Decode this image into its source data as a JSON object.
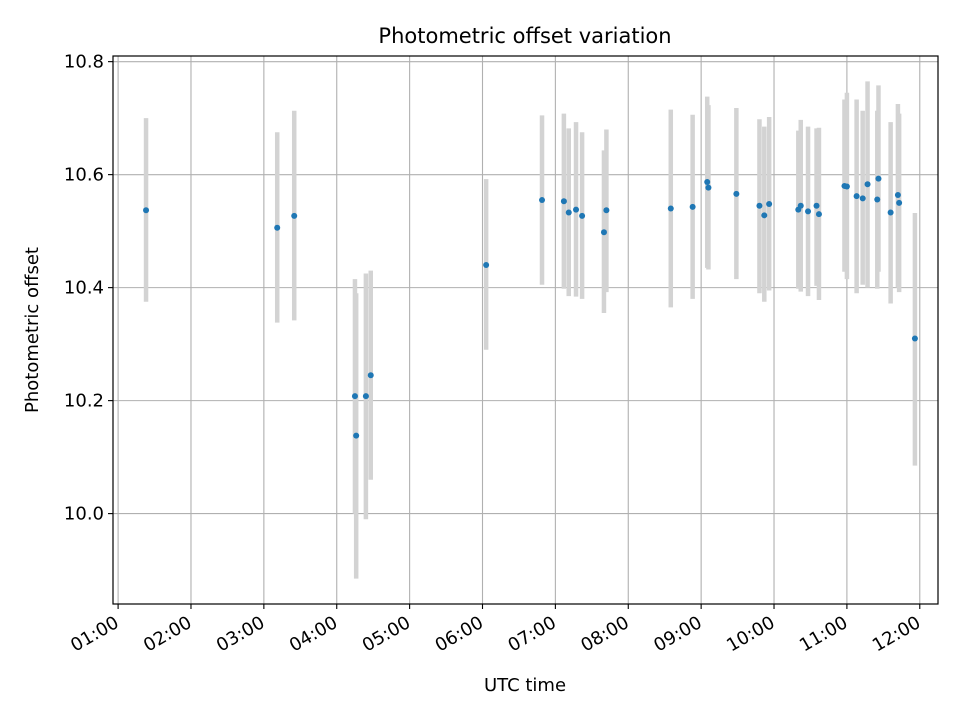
{
  "chart_data": {
    "type": "scatter",
    "title": "Photometric offset variation",
    "xlabel": "UTC time",
    "ylabel": "Photometric offset",
    "grid": true,
    "xlim_hours": [
      0.93,
      12.25
    ],
    "ylim": [
      9.84,
      10.81
    ],
    "x_ticks": [
      "01:00",
      "02:00",
      "03:00",
      "04:00",
      "05:00",
      "06:00",
      "07:00",
      "08:00",
      "09:00",
      "10:00",
      "11:00",
      "12:00"
    ],
    "y_ticks": [
      "10.0",
      "10.2",
      "10.4",
      "10.6",
      "10.8"
    ],
    "colors": {
      "point": "#1f77b4",
      "error_bar": "#d3d3d3",
      "grid": "#b0b0b0"
    },
    "series": [
      {
        "error_bar_color": "#d3d3d3",
        "points": [
          {
            "x": "01:23",
            "y": 10.537,
            "lo": 10.375,
            "hi": 10.7
          },
          {
            "x": "03:11",
            "y": 10.506,
            "lo": 10.338,
            "hi": 10.675
          },
          {
            "x": "03:25",
            "y": 10.527,
            "lo": 10.342,
            "hi": 10.713
          },
          {
            "x": "04:15",
            "y": 10.208,
            "lo": 10.0,
            "hi": 10.415
          },
          {
            "x": "04:16",
            "y": 10.138,
            "lo": 9.885,
            "hi": 10.39
          },
          {
            "x": "04:24",
            "y": 10.208,
            "lo": 9.99,
            "hi": 10.425
          },
          {
            "x": "04:28",
            "y": 10.245,
            "lo": 10.06,
            "hi": 10.43
          },
          {
            "x": "06:03",
            "y": 10.44,
            "lo": 10.29,
            "hi": 10.592
          },
          {
            "x": "06:49",
            "y": 10.555,
            "lo": 10.405,
            "hi": 10.705
          },
          {
            "x": "07:07",
            "y": 10.553,
            "lo": 10.398,
            "hi": 10.708
          },
          {
            "x": "07:11",
            "y": 10.533,
            "lo": 10.385,
            "hi": 10.682
          },
          {
            "x": "07:17",
            "y": 10.538,
            "lo": 10.384,
            "hi": 10.693
          },
          {
            "x": "07:22",
            "y": 10.527,
            "lo": 10.38,
            "hi": 10.675
          },
          {
            "x": "07:40",
            "y": 10.498,
            "lo": 10.355,
            "hi": 10.643
          },
          {
            "x": "07:42",
            "y": 10.537,
            "lo": 10.392,
            "hi": 10.68
          },
          {
            "x": "08:35",
            "y": 10.54,
            "lo": 10.365,
            "hi": 10.715
          },
          {
            "x": "08:53",
            "y": 10.543,
            "lo": 10.38,
            "hi": 10.706
          },
          {
            "x": "09:05",
            "y": 10.587,
            "lo": 10.435,
            "hi": 10.738
          },
          {
            "x": "09:06",
            "y": 10.577,
            "lo": 10.432,
            "hi": 10.723
          },
          {
            "x": "09:29",
            "y": 10.566,
            "lo": 10.415,
            "hi": 10.718
          },
          {
            "x": "09:48",
            "y": 10.545,
            "lo": 10.39,
            "hi": 10.698
          },
          {
            "x": "09:52",
            "y": 10.528,
            "lo": 10.375,
            "hi": 10.685
          },
          {
            "x": "09:56",
            "y": 10.548,
            "lo": 10.395,
            "hi": 10.702
          },
          {
            "x": "10:20",
            "y": 10.538,
            "lo": 10.398,
            "hi": 10.678
          },
          {
            "x": "10:22",
            "y": 10.545,
            "lo": 10.393,
            "hi": 10.697
          },
          {
            "x": "10:28",
            "y": 10.535,
            "lo": 10.385,
            "hi": 10.685
          },
          {
            "x": "10:35",
            "y": 10.545,
            "lo": 10.403,
            "hi": 10.682
          },
          {
            "x": "10:37",
            "y": 10.53,
            "lo": 10.378,
            "hi": 10.683
          },
          {
            "x": "10:58",
            "y": 10.58,
            "lo": 10.428,
            "hi": 10.733
          },
          {
            "x": "11:00",
            "y": 10.579,
            "lo": 10.415,
            "hi": 10.745
          },
          {
            "x": "11:08",
            "y": 10.562,
            "lo": 10.39,
            "hi": 10.733
          },
          {
            "x": "11:13",
            "y": 10.558,
            "lo": 10.405,
            "hi": 10.713
          },
          {
            "x": "11:17",
            "y": 10.583,
            "lo": 10.4,
            "hi": 10.765
          },
          {
            "x": "11:25",
            "y": 10.556,
            "lo": 10.398,
            "hi": 10.713
          },
          {
            "x": "11:26",
            "y": 10.593,
            "lo": 10.428,
            "hi": 10.758
          },
          {
            "x": "11:36",
            "y": 10.533,
            "lo": 10.372,
            "hi": 10.693
          },
          {
            "x": "11:42",
            "y": 10.564,
            "lo": 10.4,
            "hi": 10.725
          },
          {
            "x": "11:43",
            "y": 10.55,
            "lo": 10.392,
            "hi": 10.708
          },
          {
            "x": "11:56",
            "y": 10.31,
            "lo": 10.085,
            "hi": 10.532
          }
        ]
      }
    ]
  }
}
